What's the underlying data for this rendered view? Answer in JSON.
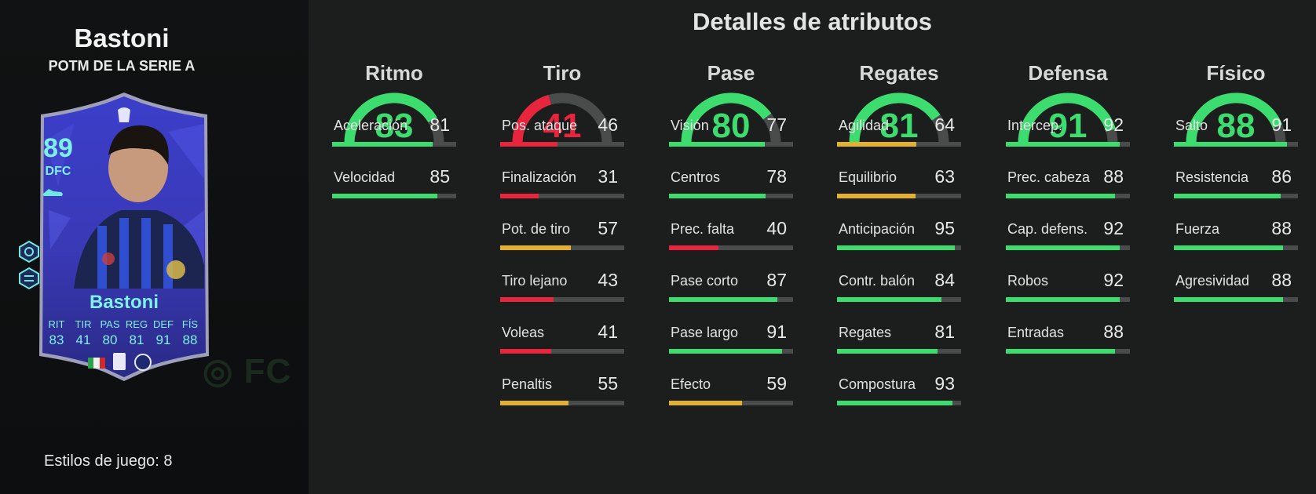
{
  "player": {
    "name": "Bastoni",
    "subtitle": "POTM DE LA SERIE A",
    "playstyles_label": "Estilos de juego: 8"
  },
  "card": {
    "rating": "89",
    "position": "DFC",
    "name": "Bastoni",
    "stats": [
      {
        "label": "RIT",
        "value": "83"
      },
      {
        "label": "TIR",
        "value": "41"
      },
      {
        "label": "PAS",
        "value": "80"
      },
      {
        "label": "REG",
        "value": "81"
      },
      {
        "label": "DEF",
        "value": "91"
      },
      {
        "label": "FÍS",
        "value": "88"
      }
    ]
  },
  "section_title": "Detalles de atributos",
  "colors": {
    "green": "#3ddc6f",
    "red": "#e8253c",
    "yellow": "#e3b12c",
    "track": "#4a4b4b"
  },
  "categories": [
    {
      "title": "Ritmo",
      "value": "83",
      "rating": 83,
      "color": "green",
      "stats": [
        {
          "name": "Aceleración",
          "value": "81",
          "level": 81,
          "color": "green"
        },
        {
          "name": "Velocidad",
          "value": "85",
          "level": 85,
          "color": "green"
        }
      ]
    },
    {
      "title": "Tiro",
      "value": "41",
      "rating": 41,
      "color": "red",
      "stats": [
        {
          "name": "Pos. ataque",
          "value": "46",
          "level": 46,
          "color": "red"
        },
        {
          "name": "Finalización",
          "value": "31",
          "level": 31,
          "color": "red"
        },
        {
          "name": "Pot. de tiro",
          "value": "57",
          "level": 57,
          "color": "yellow"
        },
        {
          "name": "Tiro lejano",
          "value": "43",
          "level": 43,
          "color": "red"
        },
        {
          "name": "Voleas",
          "value": "41",
          "level": 41,
          "color": "red"
        },
        {
          "name": "Penaltis",
          "value": "55",
          "level": 55,
          "color": "yellow"
        }
      ]
    },
    {
      "title": "Pase",
      "value": "80",
      "rating": 80,
      "color": "green",
      "stats": [
        {
          "name": "Visión",
          "value": "77",
          "level": 77,
          "color": "green"
        },
        {
          "name": "Centros",
          "value": "78",
          "level": 78,
          "color": "green"
        },
        {
          "name": "Prec. falta",
          "value": "40",
          "level": 40,
          "color": "red"
        },
        {
          "name": "Pase corto",
          "value": "87",
          "level": 87,
          "color": "green"
        },
        {
          "name": "Pase largo",
          "value": "91",
          "level": 91,
          "color": "green"
        },
        {
          "name": "Efecto",
          "value": "59",
          "level": 59,
          "color": "yellow"
        }
      ]
    },
    {
      "title": "Regates",
      "value": "81",
      "rating": 81,
      "color": "green",
      "stats": [
        {
          "name": "Agilidad",
          "value": "64",
          "level": 64,
          "color": "yellow"
        },
        {
          "name": "Equilibrio",
          "value": "63",
          "level": 63,
          "color": "yellow"
        },
        {
          "name": "Anticipación",
          "value": "95",
          "level": 95,
          "color": "green"
        },
        {
          "name": "Contr. balón",
          "value": "84",
          "level": 84,
          "color": "green"
        },
        {
          "name": "Regates",
          "value": "81",
          "level": 81,
          "color": "green"
        },
        {
          "name": "Compostura",
          "value": "93",
          "level": 93,
          "color": "green"
        }
      ]
    },
    {
      "title": "Defensa",
      "value": "91",
      "rating": 91,
      "color": "green",
      "stats": [
        {
          "name": "Intercep.",
          "value": "92",
          "level": 92,
          "color": "green"
        },
        {
          "name": "Prec. cabeza",
          "value": "88",
          "level": 88,
          "color": "green"
        },
        {
          "name": "Cap. defens.",
          "value": "92",
          "level": 92,
          "color": "green"
        },
        {
          "name": "Robos",
          "value": "92",
          "level": 92,
          "color": "green"
        },
        {
          "name": "Entradas",
          "value": "88",
          "level": 88,
          "color": "green"
        }
      ]
    },
    {
      "title": "Físico",
      "value": "88",
      "rating": 88,
      "color": "green",
      "stats": [
        {
          "name": "Salto",
          "value": "91",
          "level": 91,
          "color": "green"
        },
        {
          "name": "Resistencia",
          "value": "86",
          "level": 86,
          "color": "green"
        },
        {
          "name": "Fuerza",
          "value": "88",
          "level": 88,
          "color": "green"
        },
        {
          "name": "Agresividad",
          "value": "88",
          "level": 88,
          "color": "green"
        }
      ]
    }
  ]
}
